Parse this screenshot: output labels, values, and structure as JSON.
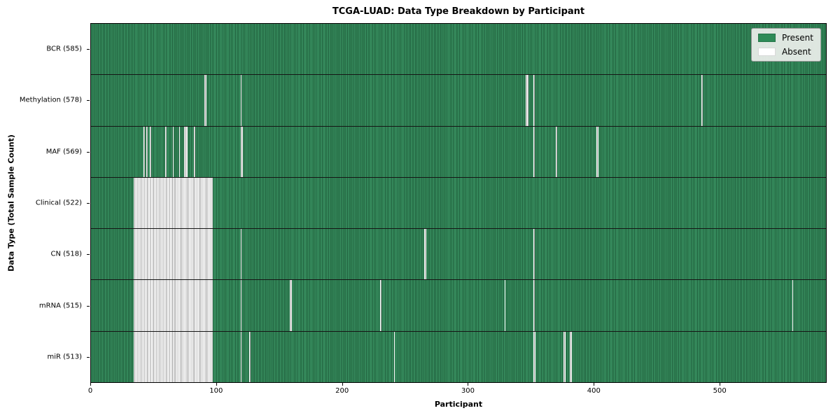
{
  "chart_data": {
    "type": "heatmap",
    "title": "TCGA-LUAD: Data Type Breakdown by Participant",
    "xlabel": "Participant",
    "ylabel": "Data Type (Total Sample Count)",
    "n_participants": 585,
    "x_ticks": [
      0,
      100,
      200,
      300,
      400,
      500
    ],
    "legend": [
      {
        "label": "Present",
        "color": "#2e8b57"
      },
      {
        "label": "Absent",
        "color": "#ffffff"
      }
    ],
    "colors": {
      "present_light": "#3a9363",
      "present_dark": "#1e5c3a",
      "absent_white": "#ffffff",
      "absent_line": "#9e9e9e",
      "row_separator": "#151515",
      "legend_bg": "#e8ece8"
    },
    "rows": [
      {
        "name": "BCR",
        "count": 585,
        "absent": []
      },
      {
        "name": "Methylation",
        "count": 578,
        "absent": [
          [
            90,
            2
          ],
          [
            119,
            1
          ],
          [
            346,
            2
          ],
          [
            352,
            1
          ],
          [
            486,
            1
          ]
        ]
      },
      {
        "name": "MAF",
        "count": 569,
        "absent": [
          [
            42,
            1
          ],
          [
            44,
            1
          ],
          [
            47,
            1
          ],
          [
            59,
            1
          ],
          [
            65,
            1
          ],
          [
            70,
            1
          ],
          [
            74,
            3
          ],
          [
            82,
            1
          ],
          [
            119,
            2
          ],
          [
            352,
            1
          ],
          [
            370,
            1
          ],
          [
            402,
            2
          ]
        ]
      },
      {
        "name": "Clinical",
        "count": 522,
        "absent": [
          [
            34,
            63
          ]
        ]
      },
      {
        "name": "CN",
        "count": 518,
        "absent": [
          [
            34,
            63
          ],
          [
            119,
            1
          ],
          [
            265,
            2
          ],
          [
            352,
            1
          ]
        ]
      },
      {
        "name": "mRNA",
        "count": 515,
        "absent": [
          [
            34,
            63
          ],
          [
            119,
            1
          ],
          [
            158,
            2
          ],
          [
            230,
            1
          ],
          [
            329,
            1
          ],
          [
            352,
            1
          ],
          [
            558,
            1
          ]
        ]
      },
      {
        "name": "miR",
        "count": 513,
        "absent": [
          [
            34,
            63
          ],
          [
            119,
            1
          ],
          [
            126,
            1
          ],
          [
            241,
            1
          ],
          [
            352,
            2
          ],
          [
            376,
            2
          ],
          [
            381,
            2
          ]
        ]
      }
    ]
  }
}
